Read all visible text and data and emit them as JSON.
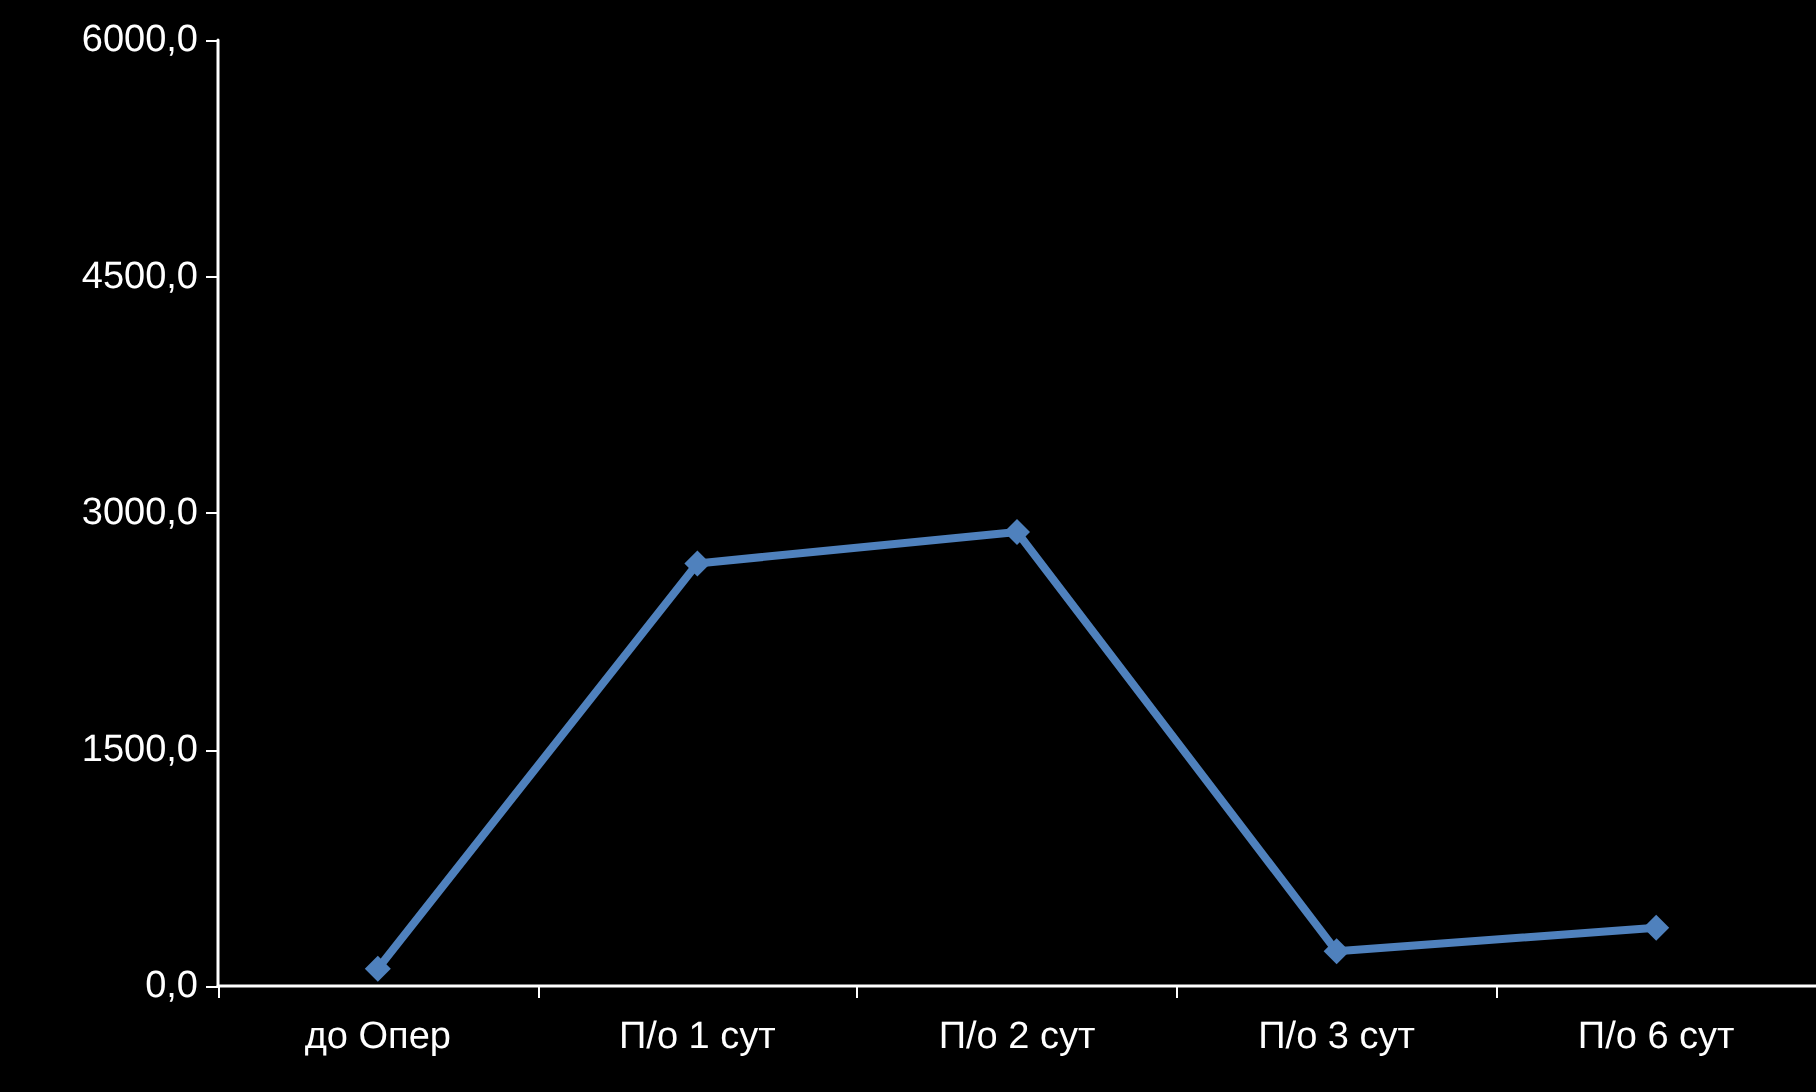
{
  "chart_data": {
    "type": "line",
    "categories": [
      "до Опер",
      "П/о 1 сут",
      "П/о 2 сут",
      "П/о 3 сут",
      "П/о 6 сут"
    ],
    "series": [
      {
        "color": "#4f81bd",
        "values": [
          110,
          2680,
          2880,
          220,
          370
        ]
      }
    ],
    "ylim": [
      0,
      6000
    ],
    "yticks": [
      {
        "value": 0,
        "label": "0,0"
      },
      {
        "value": 1500,
        "label": "1500,0"
      },
      {
        "value": 3000,
        "label": "3000,0"
      },
      {
        "value": 4500,
        "label": "4500,0"
      },
      {
        "value": 6000,
        "label": "6000,0"
      }
    ],
    "grid": false,
    "marker": "diamond",
    "line_style": "solid"
  }
}
